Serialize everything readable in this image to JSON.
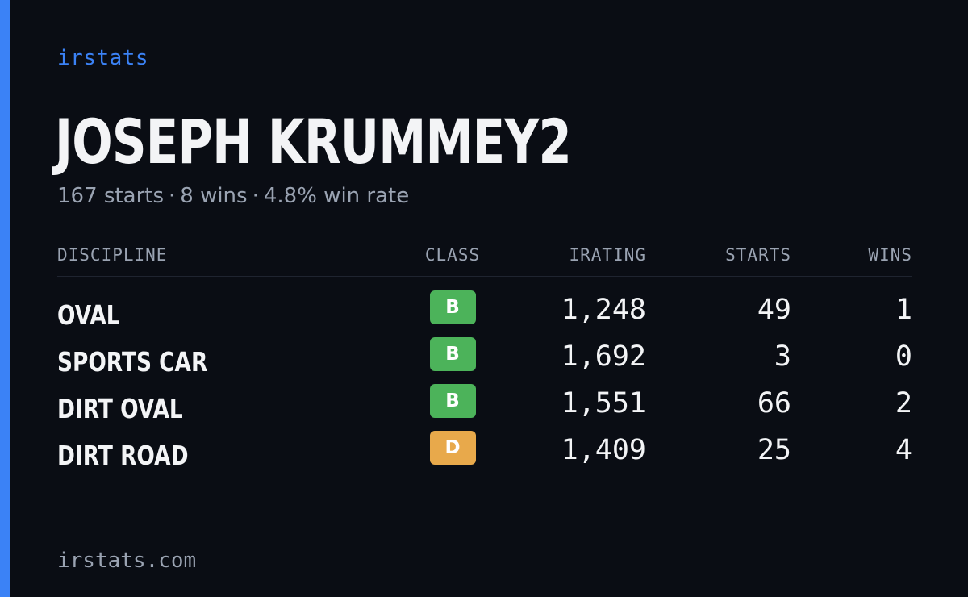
{
  "brand": "irstats",
  "driver": {
    "name": "JOSEPH KRUMMEY2",
    "starts_text": "167 starts",
    "wins_text": "8 wins",
    "win_rate_text": "4.8% win rate",
    "separator": "·"
  },
  "table": {
    "headers": {
      "discipline": "DISCIPLINE",
      "class": "CLASS",
      "irating": "IRATING",
      "starts": "STARTS",
      "wins": "WINS"
    },
    "rows": [
      {
        "discipline": "OVAL",
        "class": "B",
        "class_color": "#4cb35a",
        "irating": "1,248",
        "starts": "49",
        "wins": "1"
      },
      {
        "discipline": "SPORTS CAR",
        "class": "B",
        "class_color": "#4cb35a",
        "irating": "1,692",
        "starts": "3",
        "wins": "0"
      },
      {
        "discipline": "DIRT OVAL",
        "class": "B",
        "class_color": "#4cb35a",
        "irating": "1,551",
        "starts": "66",
        "wins": "2"
      },
      {
        "discipline": "DIRT ROAD",
        "class": "D",
        "class_color": "#e8a94b",
        "irating": "1,409",
        "starts": "25",
        "wins": "4"
      }
    ]
  },
  "footer": "irstats.com",
  "colors": {
    "background": "#0a0d14",
    "accent": "#3b82f6",
    "text_primary": "#f3f4f6",
    "text_secondary": "#9aa3b2"
  }
}
